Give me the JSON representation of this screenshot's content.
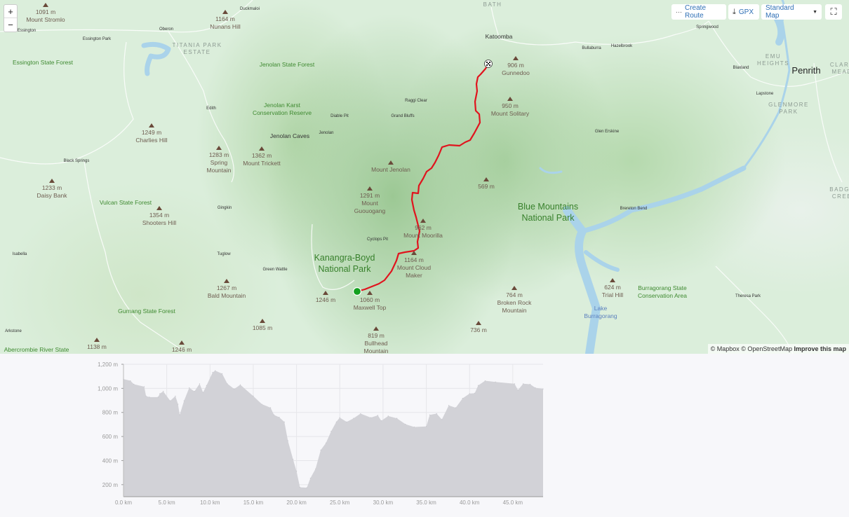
{
  "toolbar": {
    "zoom_in": "+",
    "zoom_out": "−",
    "create_route": "Create Route",
    "gpx": "GPX",
    "map_style": "Standard Map",
    "icons": {
      "create_route": "route-icon",
      "gpx": "download-icon",
      "map_style": "caret-down-icon",
      "fullscreen": "fullscreen-icon"
    }
  },
  "attribution": {
    "mapbox": "© Mapbox",
    "osm": "© OpenStreetMap",
    "improve": "Improve this map"
  },
  "colors": {
    "route": "#e0141e",
    "start": "#13a01f",
    "water": "#aad3ea",
    "elevation_fill": "#d2d2d7"
  },
  "map": {
    "peaks": [
      {
        "elevation": "1091 m",
        "name": "Mount Stromlo"
      },
      {
        "elevation": "1164 m",
        "name": "Nunans Hill"
      },
      {
        "elevation": "1249 m",
        "name": "Charlies Hill"
      },
      {
        "elevation": "1283 m",
        "name": "Spring\nMountain"
      },
      {
        "elevation": "1362 m",
        "name": "Mount Trickett"
      },
      {
        "elevation": "1233 m",
        "name": "Daisy Bank"
      },
      {
        "elevation": "1354 m",
        "name": "Shooters Hill"
      },
      {
        "elevation": "1267 m",
        "name": "Bald Mountain"
      },
      {
        "elevation": "1085 m",
        "name": ""
      },
      {
        "elevation": "1138 m",
        "name": ""
      },
      {
        "elevation": "1246 m",
        "name": ""
      },
      {
        "elevation": "1246 m",
        "name": ""
      },
      {
        "elevation": "1060 m",
        "name": "Maxwell Top"
      },
      {
        "elevation": "819 m",
        "name": "Bullhead\nMountain"
      },
      {
        "elevation": "1164 m",
        "name": "Mount Cloud\nMaker"
      },
      {
        "elevation": "962 m",
        "name": "Mount Moorilla"
      },
      {
        "elevation": "1291 m",
        "name": "Mount\nGuouogang"
      },
      {
        "elevation": "",
        "name": "Mount Jenolan"
      },
      {
        "elevation": "569 m",
        "name": ""
      },
      {
        "elevation": "906 m",
        "name": "Gunnedoo"
      },
      {
        "elevation": "950 m",
        "name": "Mount Solitary"
      },
      {
        "elevation": "764 m",
        "name": "Broken Rock\nMountain"
      },
      {
        "elevation": "736 m",
        "name": ""
      },
      {
        "elevation": "624 m",
        "name": "Trial Hill"
      }
    ],
    "parks": [
      "Essington State Forest",
      "Jenolan State Forest",
      "Jenolan Karst\nConservation Reserve",
      "Vulcan State Forest",
      "Gurnang State Forest",
      "Abercrombie River State",
      "Kanangra-Boyd\nNational Park",
      "Blue Mountains\nNational Park",
      "Burragorang State\nConservation Area"
    ],
    "places": [
      "Duckmaloi",
      "Essington",
      "Oberon",
      "Essington Park",
      "Edith",
      "Jenolan Caves",
      "Jenolan",
      "Diable Pit",
      "Raggi Clear",
      "Grand Bluffs",
      "Black Springs",
      "Gingkin",
      "Isabella",
      "Tuglow",
      "Green Wattle",
      "Arkstone",
      "Cyclops Pit",
      "Katoomba",
      "Bullaburra",
      "Hazelbrook",
      "Springwood",
      "Blaxland",
      "Lapstone",
      "Glen Erskine",
      "Brereton Bend",
      "Theresa Park",
      "Penrith"
    ],
    "suburbs": [
      "BATH",
      "TITANIA PARK\nESTATE",
      "EMU\nHEIGHTS",
      "GLENMORE\nPARK",
      "CLARE\nMEAD",
      "BADGE\nCREE"
    ],
    "water_labels": [
      "Lake\nBurragorang"
    ]
  },
  "chart_data": {
    "type": "area",
    "xlabel": "",
    "ylabel": "",
    "xlim": [
      0,
      48.5
    ],
    "ylim": [
      100,
      1200
    ],
    "xticks": [
      "0.0 km",
      "5.0 km",
      "10.0 km",
      "15.0 km",
      "20.0 km",
      "25.0 km",
      "30.0 km",
      "35.0 km",
      "40.0 km",
      "45.0 km"
    ],
    "yticks": [
      "1,200 m",
      "1,000 m",
      "800 m",
      "600 m",
      "400 m",
      "200 m"
    ],
    "grid": true,
    "x": [
      0,
      0.8,
      1.2,
      2.4,
      2.6,
      3.0,
      4.0,
      4.2,
      4.6,
      5.4,
      6.0,
      6.3,
      6.5,
      7.0,
      7.6,
      8.2,
      8.8,
      9.2,
      9.6,
      10.3,
      10.6,
      11.4,
      12.0,
      12.8,
      13.5,
      15.0,
      16.0,
      17.0,
      17.4,
      18.0,
      18.6,
      19.0,
      19.6,
      20.0,
      20.4,
      21.2,
      21.6,
      22.2,
      22.8,
      23.4,
      24.0,
      24.6,
      25.0,
      25.8,
      26.6,
      27.4,
      28.6,
      29.4,
      29.8,
      30.6,
      31.6,
      32.6,
      33.6,
      35.0,
      35.4,
      36.2,
      36.8,
      37.6,
      38.4,
      39.2,
      40.0,
      40.6,
      41.0,
      41.8,
      43.0,
      45.2,
      45.6,
      46.2,
      47.0,
      47.6,
      48.5
    ],
    "y": [
      1077,
      1063,
      1034,
      1014,
      936,
      927,
      927,
      956,
      975,
      897,
      936,
      868,
      780,
      897,
      1005,
      975,
      1038,
      966,
      1024,
      1132,
      1147,
      1122,
      1038,
      995,
      1030,
      936,
      868,
      839,
      780,
      760,
      721,
      565,
      409,
      311,
      178,
      175,
      253,
      331,
      487,
      546,
      643,
      721,
      757,
      721,
      751,
      790,
      757,
      776,
      731,
      770,
      751,
      702,
      679,
      683,
      780,
      790,
      741,
      858,
      839,
      917,
      956,
      960,
      1024,
      1063,
      1053,
      1038,
      985,
      1038,
      1034,
      1005,
      995
    ]
  }
}
